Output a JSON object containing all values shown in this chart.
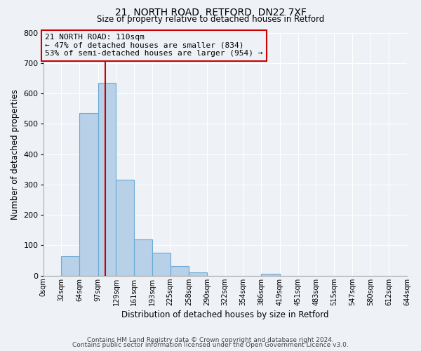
{
  "title1": "21, NORTH ROAD, RETFORD, DN22 7XF",
  "title2": "Size of property relative to detached houses in Retford",
  "xlabel": "Distribution of detached houses by size in Retford",
  "ylabel": "Number of detached properties",
  "bin_edges": [
    0,
    32,
    64,
    97,
    129,
    161,
    193,
    225,
    258,
    290,
    322,
    354,
    386,
    419,
    451,
    483,
    515,
    547,
    580,
    612,
    644
  ],
  "bar_heights": [
    0,
    65,
    535,
    635,
    315,
    120,
    75,
    32,
    10,
    0,
    0,
    0,
    7,
    0,
    0,
    0,
    0,
    0,
    0,
    0
  ],
  "bar_color": "#b8d0e8",
  "bar_edge_color": "#6aaad4",
  "ylim": [
    0,
    800
  ],
  "yticks": [
    0,
    100,
    200,
    300,
    400,
    500,
    600,
    700,
    800
  ],
  "property_size": 110,
  "vline_color": "#cc0000",
  "annotation_title": "21 NORTH ROAD: 110sqm",
  "annotation_line1": "← 47% of detached houses are smaller (834)",
  "annotation_line2": "53% of semi-detached houses are larger (954) →",
  "annotation_box_color": "#cc0000",
  "footer1": "Contains HM Land Registry data © Crown copyright and database right 2024.",
  "footer2": "Contains public sector information licensed under the Open Government Licence v3.0.",
  "background_color": "#eef2f7",
  "grid_color": "#ffffff"
}
